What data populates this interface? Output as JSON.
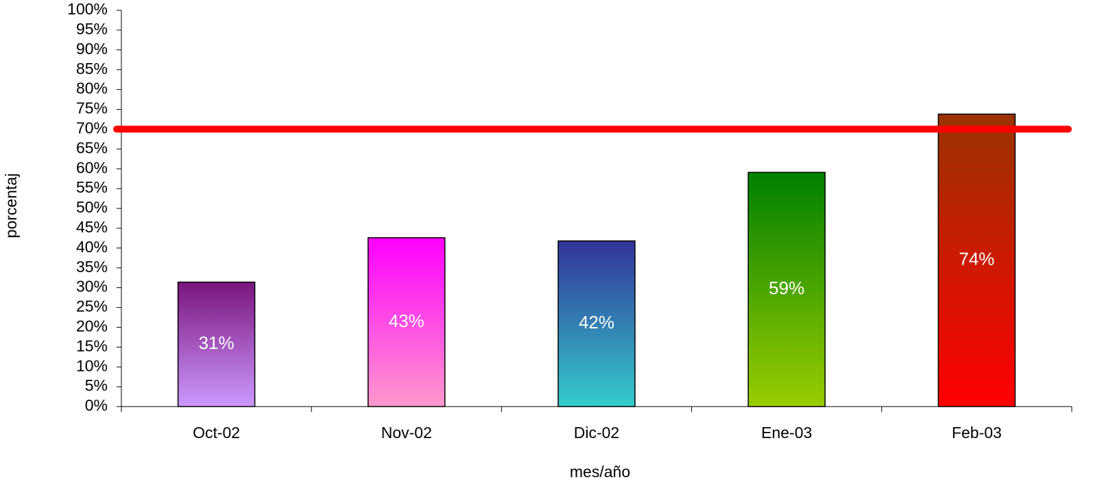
{
  "chart_data": {
    "type": "bar",
    "x_label": "mes/año",
    "y_label": "porcentaj",
    "categories": [
      "Oct-02",
      "Nov-02",
      "Dic-02",
      "Ene-03",
      "Feb-03"
    ],
    "values": [
      31.4,
      42.6,
      41.8,
      59.1,
      73.8
    ],
    "value_labels": [
      "31%",
      "43%",
      "42%",
      "59%",
      "74%"
    ],
    "bar_colors": [
      {
        "top": "#7b147e",
        "bottom": "#cc99ff"
      },
      {
        "top": "#ff00ff",
        "bottom": "#ff99cc"
      },
      {
        "top": "#333399",
        "bottom": "#33cccc"
      },
      {
        "top": "#008000",
        "bottom": "#99cc00"
      },
      {
        "top": "#993300",
        "bottom": "#ff0000"
      }
    ],
    "threshold": {
      "value": 70,
      "color": "#ff0000"
    },
    "ylim": [
      0,
      100
    ],
    "yticks": [
      {
        "value": 0,
        "label": "0%"
      },
      {
        "value": 5,
        "label": "5%"
      },
      {
        "value": 10,
        "label": "10%"
      },
      {
        "value": 15,
        "label": "15%"
      },
      {
        "value": 20,
        "label": "20%"
      },
      {
        "value": 25,
        "label": "25%"
      },
      {
        "value": 30,
        "label": "30%"
      },
      {
        "value": 35,
        "label": "35%"
      },
      {
        "value": 40,
        "label": "40%"
      },
      {
        "value": 45,
        "label": "45%"
      },
      {
        "value": 50,
        "label": "50%"
      },
      {
        "value": 55,
        "label": "55%"
      },
      {
        "value": 60,
        "label": "60%"
      },
      {
        "value": 65,
        "label": "65%"
      },
      {
        "value": 70,
        "label": "70%"
      },
      {
        "value": 75,
        "label": "75%"
      },
      {
        "value": 80,
        "label": "80%"
      },
      {
        "value": 85,
        "label": "85%"
      },
      {
        "value": 90,
        "label": "90%"
      },
      {
        "value": 95,
        "label": "95%"
      },
      {
        "value": 100,
        "label": "100%"
      }
    ],
    "grid": false
  }
}
